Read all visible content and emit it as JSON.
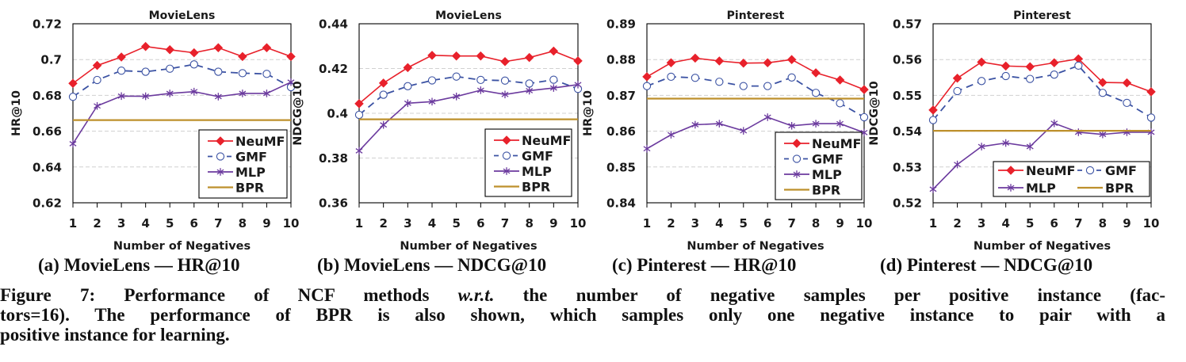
{
  "figure": {
    "subcaptions": [
      "(a) MovieLens — HR@10",
      "(b) MovieLens — NDCG@10",
      "(c) Pinterest — HR@10",
      "(d) Pinterest — NDCG@10"
    ],
    "caption": {
      "label": "Figure 7:",
      "line1_a": "Performance of NCF methods ",
      "line1_em": "w.r.t.",
      "line1_b": " the number of negative samples per positive instance (fac-",
      "line2": "tors=16). The performance of BPR is also shown, which samples only one negative instance to pair with a",
      "line3": "positive instance for learning."
    }
  },
  "colors": {
    "NeuMF": "#e8212b",
    "GMF": "#3b52a3",
    "MLP": "#6b3a9e",
    "BPR": "#bd902c",
    "grid": "#d0d0d0",
    "axis": "#000000"
  },
  "chart_data": [
    {
      "type": "line",
      "id": "a",
      "title": "MovieLens",
      "xlabel": "Number of Negatives",
      "ylabel": "HR@10",
      "x": [
        1,
        2,
        3,
        4,
        5,
        6,
        7,
        8,
        9,
        10
      ],
      "xticks": [
        "1",
        "2",
        "3",
        "4",
        "5",
        "6",
        "7",
        "8",
        "9",
        "10"
      ],
      "ylim": [
        0.62,
        0.72
      ],
      "yticks": [
        0.62,
        0.64,
        0.66,
        0.68,
        0.7,
        0.72
      ],
      "ytick_labels": [
        "0.62",
        "0.64",
        "0.66",
        "0.68",
        "0.7",
        "0.72"
      ],
      "grid": true,
      "legend": {
        "placement": "bottom-right",
        "layout": "column"
      },
      "series": [
        {
          "name": "NeuMF",
          "marker": "diamond",
          "style": "solid",
          "values": [
            0.6867,
            0.6967,
            0.7014,
            0.7073,
            0.7055,
            0.7038,
            0.7066,
            0.7017,
            0.7066,
            0.7017
          ]
        },
        {
          "name": "GMF",
          "marker": "circle",
          "style": "dashed",
          "values": [
            0.6792,
            0.6886,
            0.6938,
            0.6932,
            0.6949,
            0.6973,
            0.6932,
            0.6924,
            0.692,
            0.6846
          ]
        },
        {
          "name": "MLP",
          "marker": "asterisk",
          "style": "solid",
          "values": [
            0.653,
            0.6741,
            0.6796,
            0.6795,
            0.6811,
            0.6821,
            0.6793,
            0.6811,
            0.6811,
            0.6874
          ]
        },
        {
          "name": "BPR",
          "marker": "none",
          "style": "solid",
          "constant": 0.6662
        }
      ]
    },
    {
      "type": "line",
      "id": "b",
      "title": "MovieLens",
      "xlabel": "Number of Negatives",
      "ylabel": "NDCG@10",
      "x": [
        1,
        2,
        3,
        4,
        5,
        6,
        7,
        8,
        9,
        10
      ],
      "xticks": [
        "1",
        "2",
        "3",
        "4",
        "5",
        "6",
        "7",
        "8",
        "9",
        "10"
      ],
      "ylim": [
        0.36,
        0.44
      ],
      "yticks": [
        0.36,
        0.38,
        0.4,
        0.42,
        0.44
      ],
      "ytick_labels": [
        "0.36",
        "0.38",
        "0.4",
        "0.42",
        "0.44"
      ],
      "grid": true,
      "legend": {
        "placement": "bottom-right",
        "layout": "column"
      },
      "series": [
        {
          "name": "NeuMF",
          "marker": "diamond",
          "style": "solid",
          "values": [
            0.4043,
            0.4135,
            0.4204,
            0.4259,
            0.4256,
            0.4256,
            0.4231,
            0.4249,
            0.4278,
            0.4234
          ]
        },
        {
          "name": "GMF",
          "marker": "circle",
          "style": "dashed",
          "values": [
            0.3993,
            0.4083,
            0.4121,
            0.4147,
            0.4164,
            0.4149,
            0.4146,
            0.4133,
            0.415,
            0.4109
          ]
        },
        {
          "name": "MLP",
          "marker": "asterisk",
          "style": "solid",
          "values": [
            0.3832,
            0.3948,
            0.4045,
            0.4052,
            0.4075,
            0.4103,
            0.4084,
            0.4101,
            0.4113,
            0.4128
          ]
        },
        {
          "name": "BPR",
          "marker": "none",
          "style": "solid",
          "constant": 0.3973
        }
      ]
    },
    {
      "type": "line",
      "id": "c",
      "title": "Pinterest",
      "xlabel": "Number of Negatives",
      "ylabel": "HR@10",
      "x": [
        1,
        2,
        3,
        4,
        5,
        6,
        7,
        8,
        9,
        10
      ],
      "xticks": [
        "1",
        "2",
        "3",
        "4",
        "5",
        "6",
        "7",
        "8",
        "9",
        "10"
      ],
      "ylim": [
        0.84,
        0.89
      ],
      "yticks": [
        0.84,
        0.85,
        0.86,
        0.87,
        0.88,
        0.89
      ],
      "ytick_labels": [
        "0.84",
        "0.85",
        "0.86",
        "0.87",
        "0.88",
        "0.89"
      ],
      "grid": true,
      "legend": {
        "placement": "bottom-right",
        "layout": "column"
      },
      "series": [
        {
          "name": "NeuMF",
          "marker": "diamond",
          "style": "solid",
          "values": [
            0.8752,
            0.8791,
            0.8804,
            0.8796,
            0.879,
            0.8791,
            0.88,
            0.8763,
            0.8743,
            0.8716
          ]
        },
        {
          "name": "GMF",
          "marker": "circle",
          "style": "dashed",
          "values": [
            0.8726,
            0.8752,
            0.8749,
            0.8738,
            0.8726,
            0.8726,
            0.875,
            0.8707,
            0.8678,
            0.8639
          ]
        },
        {
          "name": "MLP",
          "marker": "asterisk",
          "style": "solid",
          "values": [
            0.8551,
            0.859,
            0.8618,
            0.8621,
            0.8601,
            0.8639,
            0.8615,
            0.8621,
            0.8621,
            0.8596
          ]
        },
        {
          "name": "BPR",
          "marker": "none",
          "style": "solid",
          "constant": 0.8691
        }
      ]
    },
    {
      "type": "line",
      "id": "d",
      "title": "Pinterest",
      "xlabel": "Number of Negatives",
      "ylabel": "NDCG@10",
      "x": [
        1,
        2,
        3,
        4,
        5,
        6,
        7,
        8,
        9,
        10
      ],
      "xticks": [
        "1",
        "2",
        "3",
        "4",
        "5",
        "6",
        "7",
        "8",
        "9",
        "10"
      ],
      "ylim": [
        0.52,
        0.57
      ],
      "yticks": [
        0.52,
        0.53,
        0.54,
        0.55,
        0.56,
        0.57
      ],
      "ytick_labels": [
        "0.52",
        "0.53",
        "0.54",
        "0.55",
        "0.56",
        "0.57"
      ],
      "grid": true,
      "legend": {
        "placement": "bottom-right",
        "layout": "grid-2x2"
      },
      "series": [
        {
          "name": "NeuMF",
          "marker": "diamond",
          "style": "solid",
          "values": [
            0.5459,
            0.5548,
            0.5593,
            0.5582,
            0.558,
            0.5591,
            0.5602,
            0.5536,
            0.5535,
            0.551
          ]
        },
        {
          "name": "GMF",
          "marker": "circle",
          "style": "dashed",
          "values": [
            0.5431,
            0.5512,
            0.554,
            0.5554,
            0.5546,
            0.5558,
            0.5583,
            0.5507,
            0.5479,
            0.5438
          ]
        },
        {
          "name": "MLP",
          "marker": "asterisk",
          "style": "solid",
          "values": [
            0.5238,
            0.5307,
            0.5357,
            0.5367,
            0.5357,
            0.5422,
            0.5397,
            0.5391,
            0.5397,
            0.5397
          ]
        },
        {
          "name": "BPR",
          "marker": "none",
          "style": "solid",
          "constant": 0.5401
        }
      ]
    }
  ]
}
